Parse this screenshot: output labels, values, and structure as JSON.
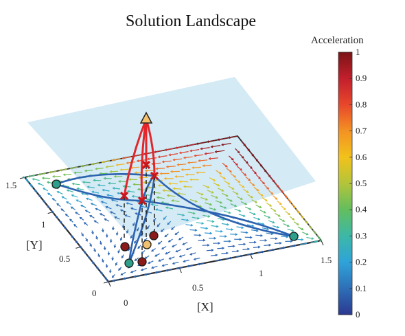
{
  "chart_data": {
    "type": "vector-field-3d",
    "title": "Solution Landscape",
    "xlabel": "[X]",
    "ylabel": "[Y]",
    "xlim": [
      0,
      1.5
    ],
    "ylim": [
      0,
      1.5
    ],
    "x_ticks": [
      "0",
      "0.5",
      "1",
      "1.5"
    ],
    "y_ticks": [
      "0",
      "0.5",
      "1",
      "1.5"
    ],
    "colorbar": {
      "title": "Acceleration",
      "range": [
        0,
        1
      ],
      "ticks": [
        "0",
        "0.1",
        "0.2",
        "0.3",
        "0.4",
        "0.5",
        "0.6",
        "0.7",
        "0.8",
        "0.9",
        "1"
      ],
      "colormap": [
        "#2b3990",
        "#2e6fb7",
        "#2fa3d9",
        "#3cb8a7",
        "#62be5e",
        "#b3c43a",
        "#f2c21b",
        "#f39223",
        "#e8472b",
        "#c21f2c",
        "#7a1416"
      ]
    },
    "ground_plane": {
      "color": "#2a2a2a",
      "arrow_colormap": "acceleration"
    },
    "upper_plane": {
      "color": "#cde6f3"
    },
    "nodes": [
      {
        "role": "stable",
        "x": 0.0,
        "y": 1.5,
        "marker": "circle",
        "color": "#2d9f8a"
      },
      {
        "role": "stable",
        "x": 1.5,
        "y": 0.0,
        "marker": "circle",
        "color": "#2d9f8a"
      },
      {
        "role": "stable",
        "x": 0.0,
        "y": 0.0,
        "marker": "circle",
        "color": "#2d9f8a"
      },
      {
        "role": "saddle",
        "x": 0.3,
        "y": 0.3,
        "marker": "circle",
        "color": "#f0c070"
      },
      {
        "role": "saddle",
        "x": 0.35,
        "y": 0.0,
        "marker": "circle",
        "color": "#8b1a1a"
      },
      {
        "role": "saddle",
        "x": 0.05,
        "y": 0.35,
        "marker": "circle",
        "color": "#8b1a1a"
      },
      {
        "role": "saddle",
        "x": 0.45,
        "y": 0.4,
        "marker": "circle",
        "color": "#8b1a1a"
      },
      {
        "role": "apex",
        "marker": "triangle",
        "color": "#f5c26b"
      }
    ],
    "blue_curves_color": "#2c63b0",
    "red_paths_color": "#e3262b",
    "red_markers": "x"
  }
}
